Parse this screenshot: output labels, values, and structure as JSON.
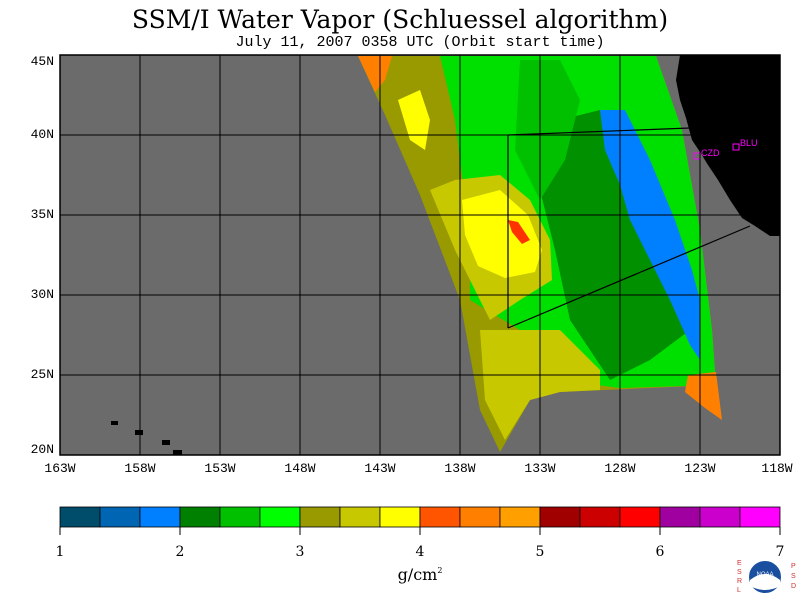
{
  "title": "SSM/I Water Vapor (Schluessel algorithm)",
  "subtitle": "July 11, 2007  0358 UTC  (Orbit start time)",
  "map": {
    "lat_labels": [
      "45N",
      "40N",
      "35N",
      "30N",
      "25N",
      "20N"
    ],
    "lon_labels": [
      "163W",
      "158W",
      "153W",
      "148W",
      "143W",
      "138W",
      "133W",
      "128W",
      "123W",
      "118W"
    ],
    "colors": {
      "ocean_no_data": "#6b6b6b",
      "land": "#000000",
      "grid": "#000000",
      "site_marker": "#ff00ff"
    },
    "sites": [
      {
        "code": "CZD"
      },
      {
        "code": "BLU"
      }
    ]
  },
  "colorbar": {
    "tick_labels": [
      "1",
      "2",
      "3",
      "4",
      "5",
      "6",
      "7"
    ],
    "unit_base": "g/cm",
    "unit_exp": "2",
    "colors": [
      "#004d6b",
      "#0066b3",
      "#0080ff",
      "#008000",
      "#00c000",
      "#00ff00",
      "#999900",
      "#c8c800",
      "#ffff00",
      "#ff5500",
      "#ff8000",
      "#ffa000",
      "#a00000",
      "#cc0000",
      "#ff0000",
      "#a000a0",
      "#cc00cc",
      "#ff00ff"
    ]
  },
  "branding": {
    "left_letters": [
      "E",
      "S",
      "R",
      "L"
    ],
    "right_letters": [
      "P",
      "S",
      "D"
    ],
    "logo_text": "NOAA"
  }
}
